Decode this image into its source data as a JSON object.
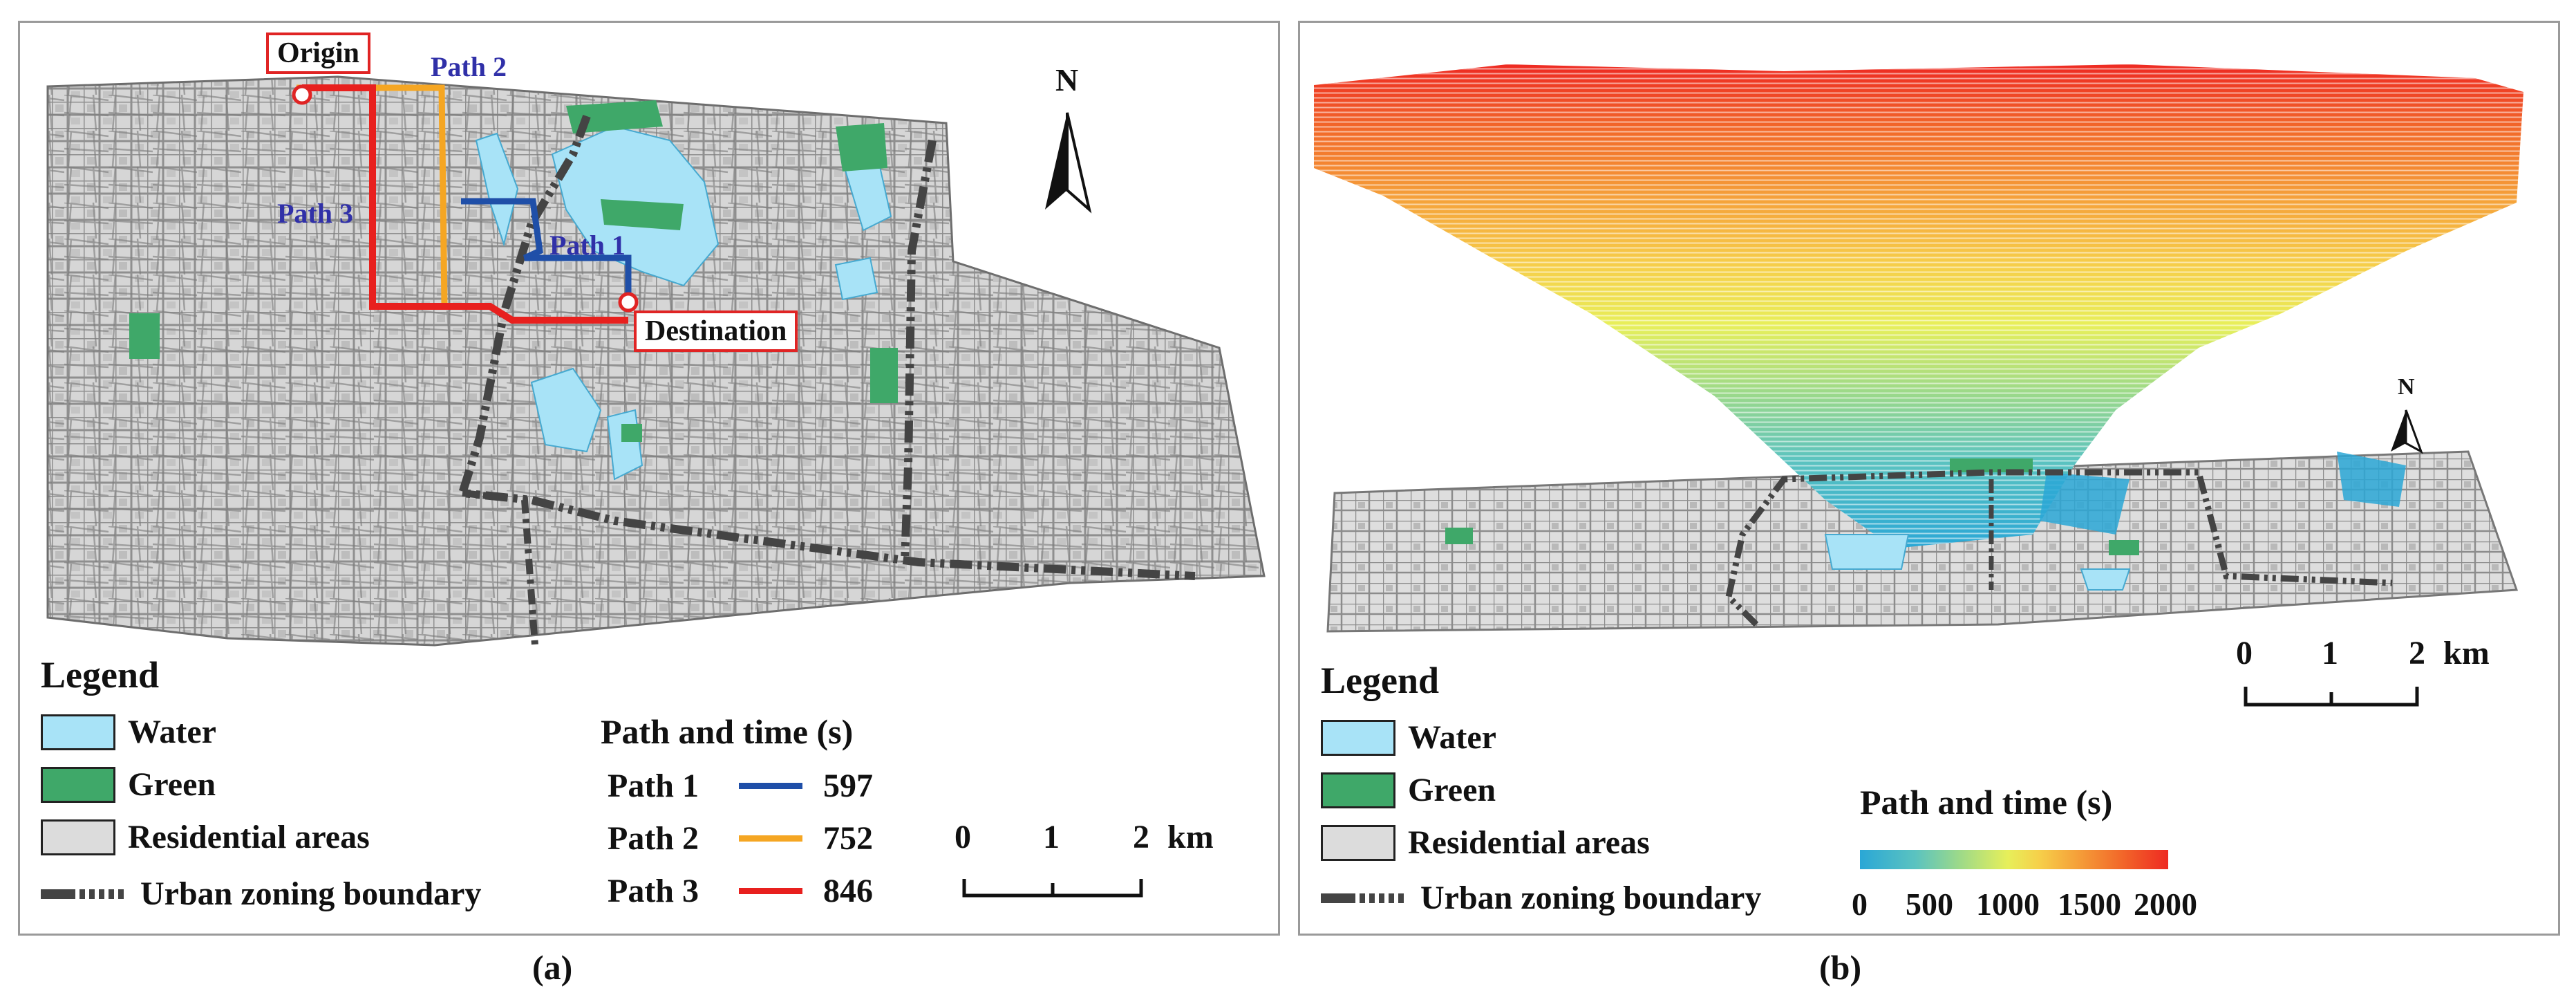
{
  "panel_a": {
    "caption": "(a)",
    "labels": {
      "origin": "Origin",
      "destination": "Destination",
      "path1": "Path 1",
      "path2": "Path 2",
      "path3": "Path 3",
      "north": "N"
    },
    "legend": {
      "title": "Legend",
      "items": [
        {
          "label": "Water",
          "icon": "water-swatch",
          "color": "#a8e3f7"
        },
        {
          "label": "Green",
          "icon": "green-swatch",
          "color": "#3fa869"
        },
        {
          "label": "Residential areas",
          "icon": "residential-swatch",
          "color": "#dcdcdc"
        },
        {
          "label": "Urban zoning boundary",
          "icon": "dashed-boundary",
          "color": "#444444"
        }
      ]
    },
    "path_table": {
      "title": "Path and time (s)",
      "rows": [
        {
          "name": "Path 1",
          "color": "#1f4fa8",
          "time": "597"
        },
        {
          "name": "Path 2",
          "color": "#f5a623",
          "time": "752"
        },
        {
          "name": "Path 3",
          "color": "#e8201e",
          "time": "846"
        }
      ]
    },
    "scale": {
      "labels": [
        "0",
        "1",
        "2"
      ],
      "unit": "km"
    }
  },
  "panel_b": {
    "caption": "(b)",
    "north": "N",
    "legend": {
      "title": "Legend",
      "items": [
        {
          "label": "Water",
          "icon": "water-swatch",
          "color": "#a8e3f7"
        },
        {
          "label": "Green",
          "icon": "green-swatch",
          "color": "#3fa869"
        },
        {
          "label": "Residential areas",
          "icon": "residential-swatch",
          "color": "#dcdcdc"
        },
        {
          "label": "Urban zoning boundary",
          "icon": "dashed-boundary",
          "color": "#444444"
        }
      ]
    },
    "colorbar": {
      "title": "Path and time (s)",
      "ticks": [
        "0",
        "500",
        "1000",
        "1500",
        "2000"
      ],
      "colors": [
        "#2aa7d6",
        "#9bd98a",
        "#e7ef5a",
        "#f5a23a",
        "#ee2a22"
      ]
    },
    "scale": {
      "labels": [
        "0",
        "1",
        "2"
      ],
      "unit": "km"
    }
  }
}
